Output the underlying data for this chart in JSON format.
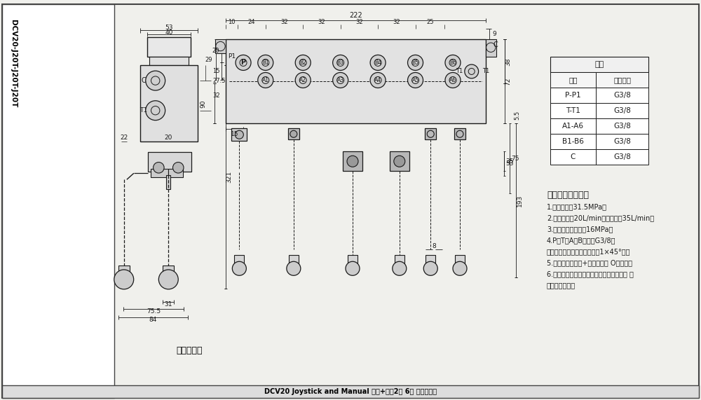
{
  "bg_color": "#f0f0ec",
  "line_color": "#1a1a1a",
  "title_rotated": "DCV20-J20T-J20T-J20T",
  "table_header": "阀体",
  "table_cols": [
    "接口",
    "螺纹规格"
  ],
  "table_rows": [
    [
      "P-P1",
      "G3/8"
    ],
    [
      "T-T1",
      "G3/8"
    ],
    [
      "A1-A6",
      "G3/8"
    ],
    [
      "B1-B6",
      "G3/8"
    ],
    [
      "C",
      "G3/8"
    ]
  ],
  "tech_title": "技术要求及参数：",
  "tech_lines": [
    "1.额定压力：31.5MPa；",
    "2.额定流量：20L/min，最大流量35L/min；",
    "3.安装阀调定压力：16MPa；",
    "4.P、T、A、B口均为G3/8，",
    "均为平面密封，螺纹孔口倒角1×45°角。",
    "5.控制方式：手动+弹簧复位， O型阀杆；",
    "6.阀体表面磷化处理，安全阀及螺堡镀锈， 支",
    "架后盖为铝本色"
  ],
  "hydraulic_label": "液压原理图",
  "bottom_text": "DCV20 Joystick and Manual 手控+一控2二 6路 整体换向阀"
}
